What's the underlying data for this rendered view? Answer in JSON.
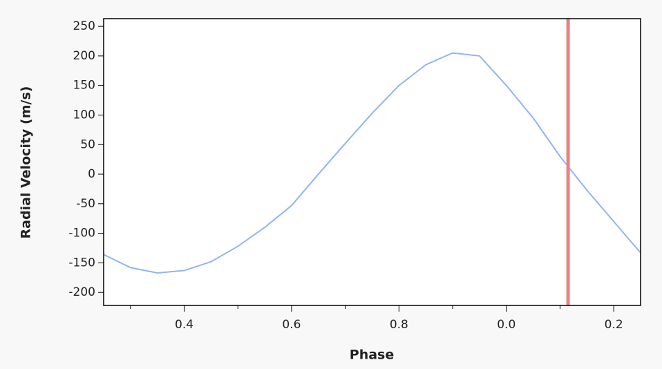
{
  "chart_data": {
    "type": "line",
    "xlabel": "Phase",
    "ylabel": "Radial Velocity (m/s)",
    "x": [
      0.25,
      0.3,
      0.35,
      0.4,
      0.45,
      0.5,
      0.55,
      0.6,
      0.65,
      0.7,
      0.75,
      0.8,
      0.85,
      0.9,
      0.95,
      1.0,
      1.05,
      1.1,
      1.15,
      1.2,
      1.25
    ],
    "series": [
      {
        "color": "#8fb4f5",
        "values": [
          -136,
          -158,
          -167,
          -163,
          -148,
          -122,
          -90,
          -53,
          0,
          52,
          103,
          150,
          185,
          205,
          200,
          150,
          95,
          30,
          -27,
          -80,
          -133
        ]
      }
    ],
    "vlines": [
      {
        "x": 1.115,
        "color": "#e8837f"
      }
    ],
    "xlim": [
      0.25,
      1.25
    ],
    "xticks": [
      0.4,
      0.6,
      0.8,
      {
        "value": 1.0,
        "label": "0.0"
      },
      {
        "value": 1.2,
        "label": "0.2"
      }
    ],
    "xminorticks": [
      0.3,
      0.5,
      0.7,
      0.9,
      1.1
    ],
    "ylim": [
      -222,
      263
    ],
    "yticks": [
      -200,
      -150,
      -100,
      -50,
      0,
      50,
      100,
      150,
      200,
      250
    ]
  }
}
